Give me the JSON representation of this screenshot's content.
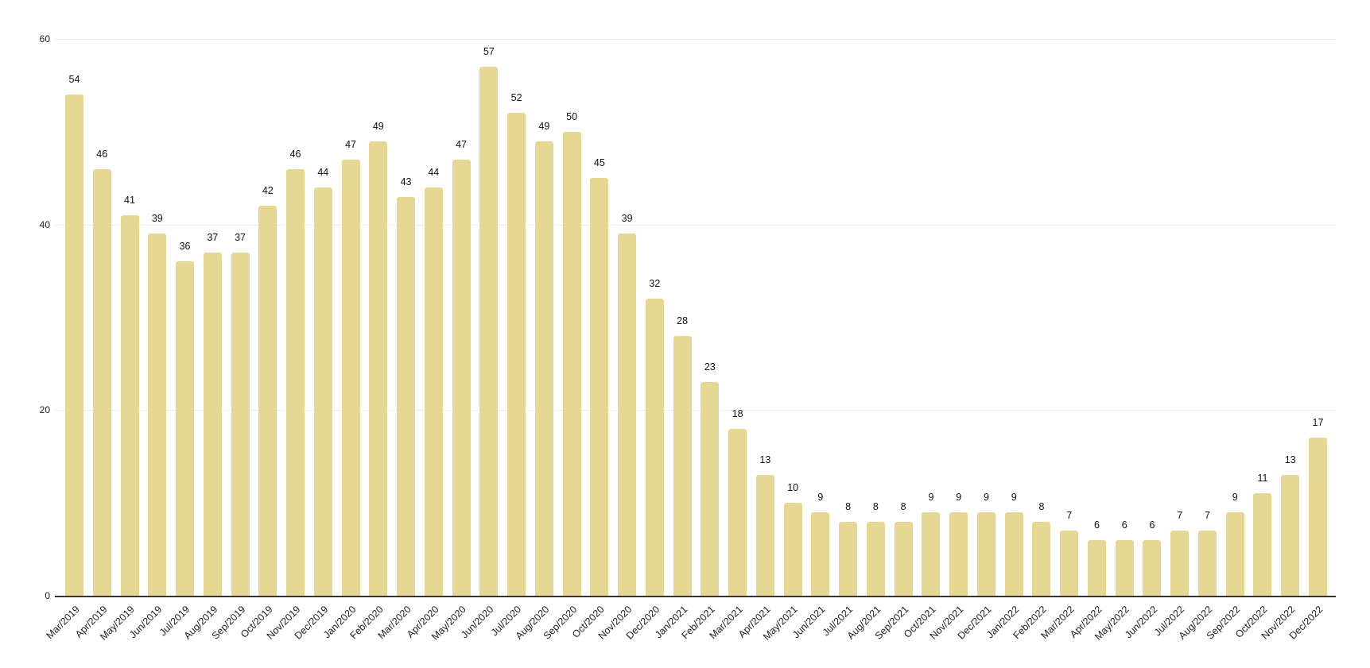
{
  "chart_data": {
    "type": "bar",
    "title": "",
    "xlabel": "",
    "ylabel": "",
    "ylim": [
      0,
      60
    ],
    "yticks": [
      0,
      20,
      40,
      60
    ],
    "grid": true,
    "legend": null,
    "bar_color": "#E6D892",
    "categories": [
      "Mar/2019",
      "Apr/2019",
      "May/2019",
      "Jun/2019",
      "Jul/2019",
      "Aug/2019",
      "Sep/2019",
      "Oct/2019",
      "Nov/2019",
      "Dec/2019",
      "Jan/2020",
      "Feb/2020",
      "Mar/2020",
      "Apr/2020",
      "May/2020",
      "Jun/2020",
      "Jul/2020",
      "Aug/2020",
      "Sep/2020",
      "Oct/2020",
      "Nov/2020",
      "Dec/2020",
      "Jan/2021",
      "Feb/2021",
      "Mar/2021",
      "Apr/2021",
      "May/2021",
      "Jun/2021",
      "Jul/2021",
      "Aug/2021",
      "Sep/2021",
      "Oct/2021",
      "Nov/2021",
      "Dec/2021",
      "Jan/2022",
      "Feb/2022",
      "Mar/2022",
      "Apr/2022",
      "May/2022",
      "Jun/2022",
      "Jul/2022",
      "Aug/2022",
      "Sep/2022",
      "Oct/2022",
      "Nov/2022",
      "Dec/2022"
    ],
    "values": [
      54,
      46,
      41,
      39,
      36,
      37,
      37,
      42,
      46,
      44,
      47,
      49,
      43,
      44,
      47,
      57,
      52,
      49,
      50,
      45,
      39,
      32,
      28,
      23,
      18,
      13,
      10,
      9,
      8,
      8,
      8,
      9,
      9,
      9,
      9,
      8,
      7,
      6,
      6,
      6,
      7,
      7,
      9,
      11,
      13,
      17
    ]
  }
}
